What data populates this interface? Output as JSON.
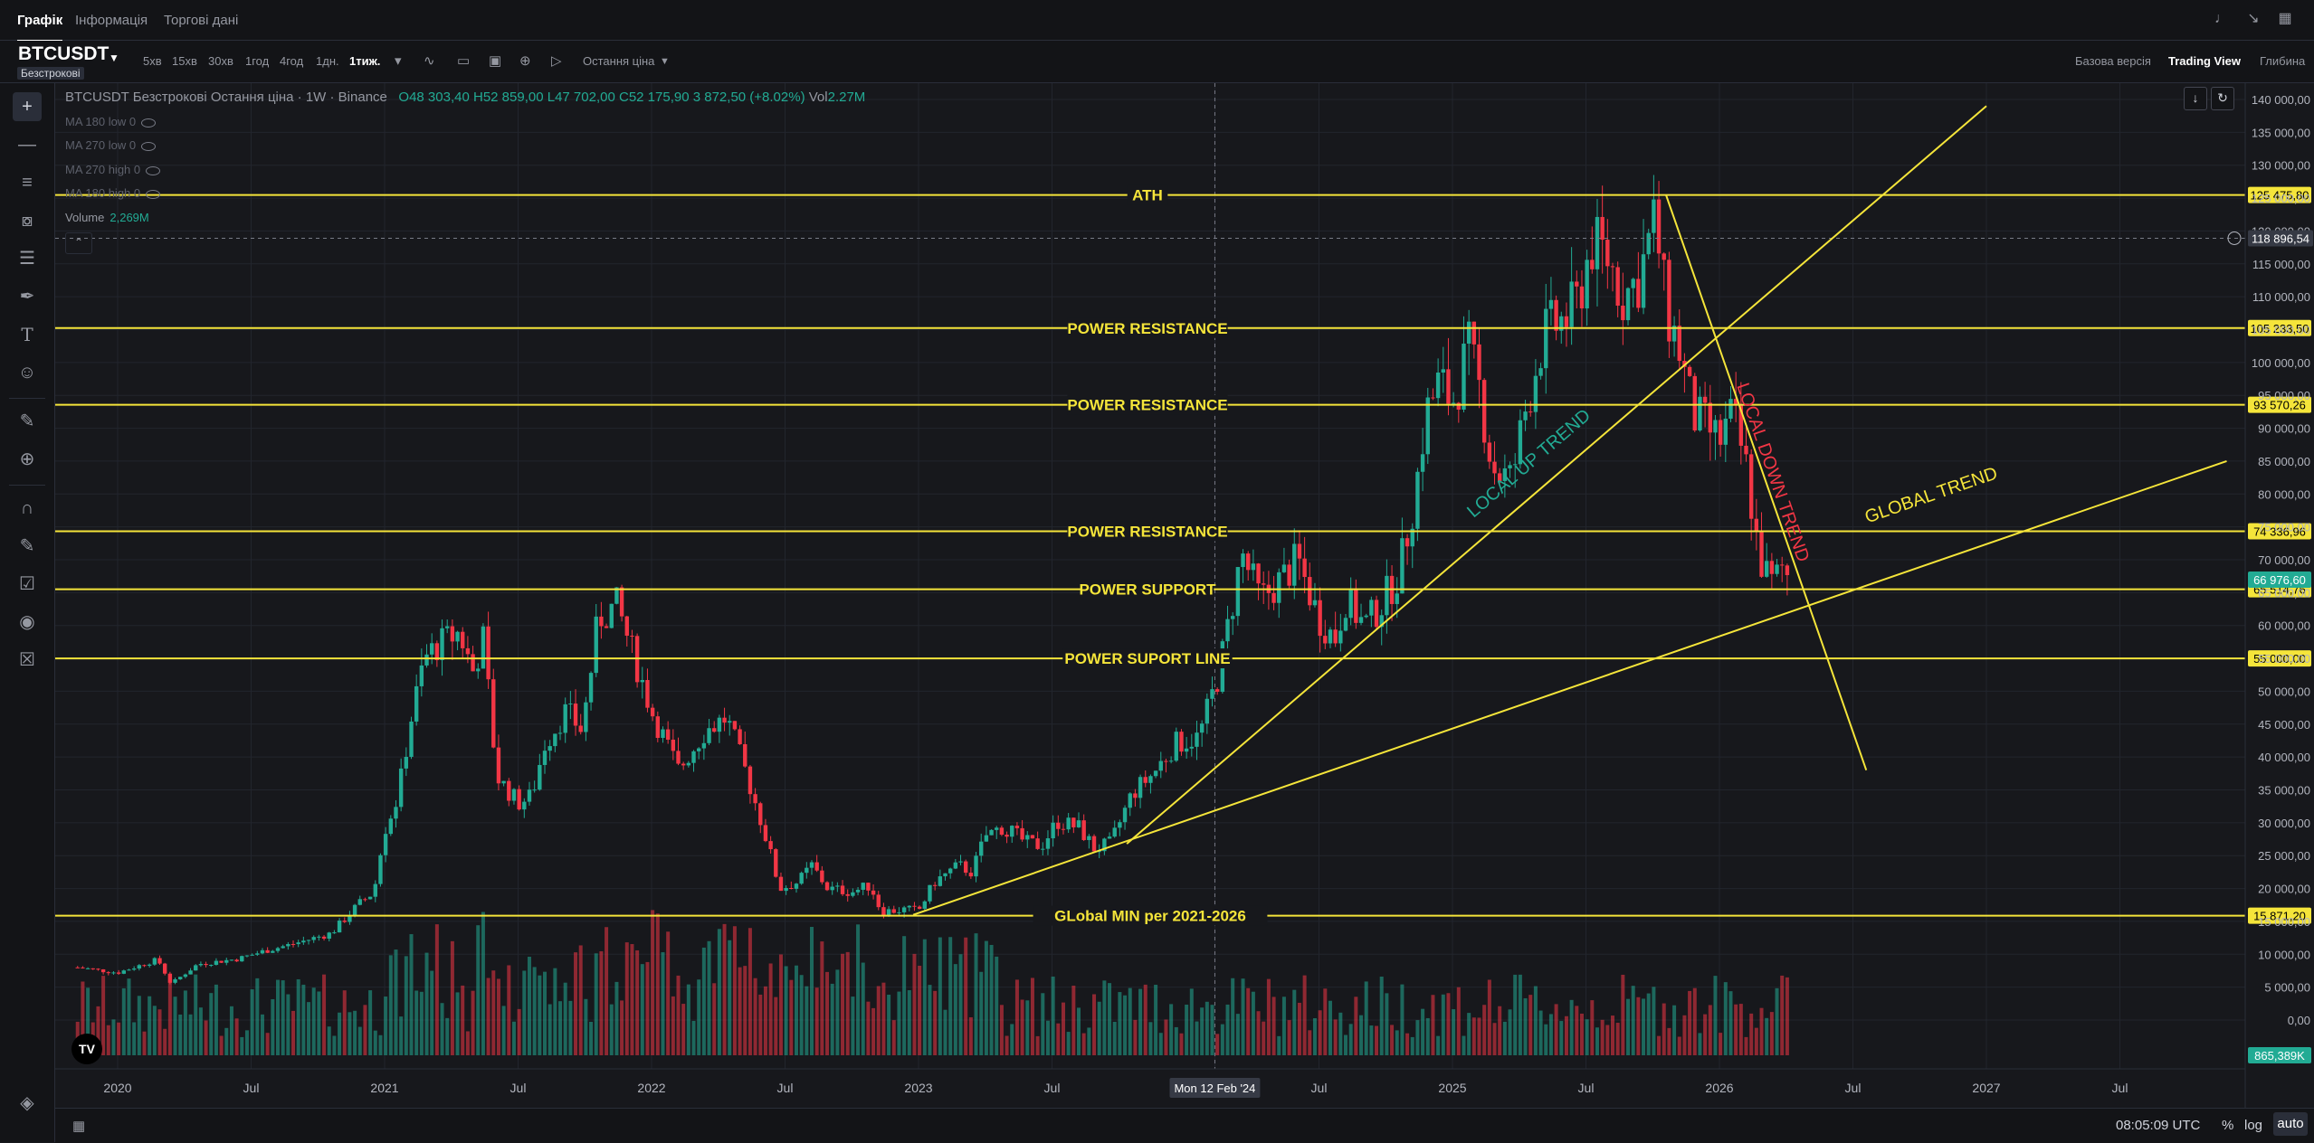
{
  "top_tabs": [
    "Графік",
    "Інформація",
    "Торгові дані"
  ],
  "symbol": {
    "name": "BTCUSDT",
    "type": "Безстрокові"
  },
  "timeframes": [
    "5хв",
    "15хв",
    "30хв",
    "1год",
    "4год",
    "1дн.",
    "1тиж."
  ],
  "price_mode": "Остання ціна",
  "views": [
    "Базова версія",
    "Trading View",
    "Глибина"
  ],
  "legend": {
    "title": "BTCUSDT Безстрокові Остання ціна · 1W · Binance",
    "open": "O48 303,40",
    "high": "H52 859,00",
    "low": "L47 702,00",
    "close": "C52 175,90",
    "change": "3 872,50 (+8.02%)",
    "vol_label": "Vol",
    "vol_value": "2.27M"
  },
  "indicators": [
    "MA 180 low 0",
    "MA 270 low 0",
    "MA 270 high 0",
    "MA 180 high 0"
  ],
  "volume_legend": {
    "label": "Volume",
    "value": "2,269M"
  },
  "colors": {
    "up": "#22ab94",
    "down": "#f23645",
    "drawing": "#f5e53a",
    "background": "#17181c"
  },
  "chart_data": {
    "type": "candlestick",
    "title": "",
    "xlabel": "",
    "ylabel": "",
    "ylim": [
      0,
      142000
    ],
    "y_ticks": [
      "140 000,00",
      "135 000,00",
      "130 000,00",
      "125 000,00",
      "120 000,00",
      "115 000,00",
      "110 000,00",
      "105 000,00",
      "100 000,00",
      "95 000,00",
      "90 000,00",
      "85 000,00",
      "80 000,00",
      "75 000,00",
      "70 000,00",
      "65 000,00",
      "60 000,00",
      "55 000,00",
      "50 000,00",
      "45 000,00",
      "40 000,00",
      "35 000,00",
      "30 000,00",
      "25 000,00",
      "20 000,00",
      "15 000,00",
      "10 000,00",
      "5 000,00",
      "0,00"
    ],
    "x_ticks": [
      "2020",
      "Jul",
      "2021",
      "Jul",
      "2022",
      "Jul",
      "2023",
      "Jul",
      "Mon 12 Feb '24",
      "Jul",
      "2025",
      "Jul",
      "2026",
      "Jul",
      "2027",
      "Jul"
    ],
    "x_tick_dates": [
      2020.0,
      2020.5,
      2021.0,
      2021.5,
      2022.0,
      2022.5,
      2023.0,
      2023.5,
      2024.11,
      2024.5,
      2025.0,
      2025.5,
      2026.0,
      2026.5,
      2027.0,
      2027.5
    ],
    "crosshair_date": 2024.11,
    "path": [
      [
        2019.85,
        8000
      ],
      [
        2020.0,
        7200
      ],
      [
        2020.15,
        9200
      ],
      [
        2020.2,
        5500
      ],
      [
        2020.3,
        8500
      ],
      [
        2020.45,
        9300
      ],
      [
        2020.55,
        10500
      ],
      [
        2020.65,
        11500
      ],
      [
        2020.8,
        13200
      ],
      [
        2020.9,
        17500
      ],
      [
        2020.96,
        19500
      ],
      [
        2021.0,
        28900
      ],
      [
        2021.05,
        34000
      ],
      [
        2021.1,
        46000
      ],
      [
        2021.15,
        55000
      ],
      [
        2021.2,
        57000
      ],
      [
        2021.28,
        59000
      ],
      [
        2021.33,
        53000
      ],
      [
        2021.37,
        58000
      ],
      [
        2021.42,
        37000
      ],
      [
        2021.5,
        33000
      ],
      [
        2021.55,
        34000
      ],
      [
        2021.6,
        42000
      ],
      [
        2021.68,
        47000
      ],
      [
        2021.74,
        44000
      ],
      [
        2021.8,
        61000
      ],
      [
        2021.87,
        63000
      ],
      [
        2021.92,
        57000
      ],
      [
        2022.0,
        47000
      ],
      [
        2022.1,
        38000
      ],
      [
        2022.2,
        44000
      ],
      [
        2022.28,
        46000
      ],
      [
        2022.35,
        38000
      ],
      [
        2022.42,
        29000
      ],
      [
        2022.48,
        20000
      ],
      [
        2022.55,
        21000
      ],
      [
        2022.6,
        23500
      ],
      [
        2022.66,
        20000
      ],
      [
        2022.75,
        19500
      ],
      [
        2022.82,
        20500
      ],
      [
        2022.86,
        16500
      ],
      [
        2022.95,
        16800
      ],
      [
        2023.0,
        16600
      ],
      [
        2023.06,
        21000
      ],
      [
        2023.15,
        23500
      ],
      [
        2023.2,
        22500
      ],
      [
        2023.25,
        28000
      ],
      [
        2023.32,
        29500
      ],
      [
        2023.4,
        27000
      ],
      [
        2023.46,
        26500
      ],
      [
        2023.52,
        30200
      ],
      [
        2023.6,
        29300
      ],
      [
        2023.66,
        26000
      ],
      [
        2023.72,
        26800
      ],
      [
        2023.8,
        34500
      ],
      [
        2023.88,
        37500
      ],
      [
        2023.96,
        42000
      ],
      [
        2024.05,
        43000
      ],
      [
        2024.12,
        52000
      ],
      [
        2024.17,
        62000
      ],
      [
        2024.21,
        71000
      ],
      [
        2024.28,
        64000
      ],
      [
        2024.36,
        67000
      ],
      [
        2024.42,
        70000
      ],
      [
        2024.5,
        61000
      ],
      [
        2024.56,
        58000
      ],
      [
        2024.6,
        64000
      ],
      [
        2024.67,
        60000
      ],
      [
        2024.73,
        63000
      ],
      [
        2024.8,
        68000
      ],
      [
        2024.86,
        80000
      ],
      [
        2024.9,
        92000
      ],
      [
        2024.95,
        97000
      ],
      [
        2025.0,
        94000
      ],
      [
        2025.06,
        102000
      ],
      [
        2025.1,
        96000
      ],
      [
        2025.15,
        84000
      ],
      [
        2025.22,
        82000
      ],
      [
        2025.28,
        94000
      ],
      [
        2025.34,
        104000
      ],
      [
        2025.4,
        106000
      ],
      [
        2025.46,
        108000
      ],
      [
        2025.52,
        118000
      ],
      [
        2025.58,
        116000
      ],
      [
        2025.64,
        110000
      ],
      [
        2025.7,
        113000
      ],
      [
        2025.76,
        122000
      ],
      [
        2025.8,
        108000
      ],
      [
        2025.85,
        102000
      ],
      [
        2025.9,
        92000
      ],
      [
        2026.0,
        88000
      ],
      [
        2026.05,
        92000
      ],
      [
        2026.1,
        84000
      ],
      [
        2026.15,
        70000
      ],
      [
        2026.2,
        66000
      ],
      [
        2026.23,
        69000
      ],
      [
        2026.27,
        66977
      ]
    ],
    "volume_baseline": 0,
    "levels": [
      {
        "label": "ATH",
        "price": 125475.8,
        "tag": "125 475,80"
      },
      {
        "label": "POWER RESISTANCE",
        "price": 105233.5,
        "tag": "105 233,50"
      },
      {
        "label": "POWER RESISTANCE",
        "price": 93570.26,
        "tag": "93 570,26"
      },
      {
        "label": "POWER RESISTANCE",
        "price": 74336.96,
        "tag": "74 336,96"
      },
      {
        "label": "POWER SUPPORT",
        "price": 65514.76,
        "tag": "65 514,76"
      },
      {
        "label": "POWER SUPORT LINE",
        "price": 55000.0,
        "tag": "55 000,00"
      },
      {
        "label": "GLobal MIN per 2021-2026",
        "price": 15871.2,
        "tag": "15 871,20"
      }
    ],
    "trendlines": [
      {
        "label": "LOCAL UP TREND",
        "from": [
          2023.78,
          26800
        ],
        "to": [
          2027.0,
          139000
        ],
        "color": "#22ab94"
      },
      {
        "label": "LOCAL DOWN TREND",
        "from": [
          2025.8,
          125475
        ],
        "to": [
          2026.55,
          38000
        ],
        "color": "#f23645"
      },
      {
        "label": "GLOBAL TREND",
        "from": [
          2022.98,
          16000
        ],
        "to": [
          2027.9,
          85000
        ],
        "color": "#f5e53a"
      }
    ],
    "crosshair_price_tag": "118 896,54",
    "last_price_tag": "66 976,60",
    "volume_tag": "865,389K"
  },
  "footer": {
    "time": "08:05:09 UTC",
    "percent": "%",
    "log": "log",
    "auto": "auto"
  }
}
